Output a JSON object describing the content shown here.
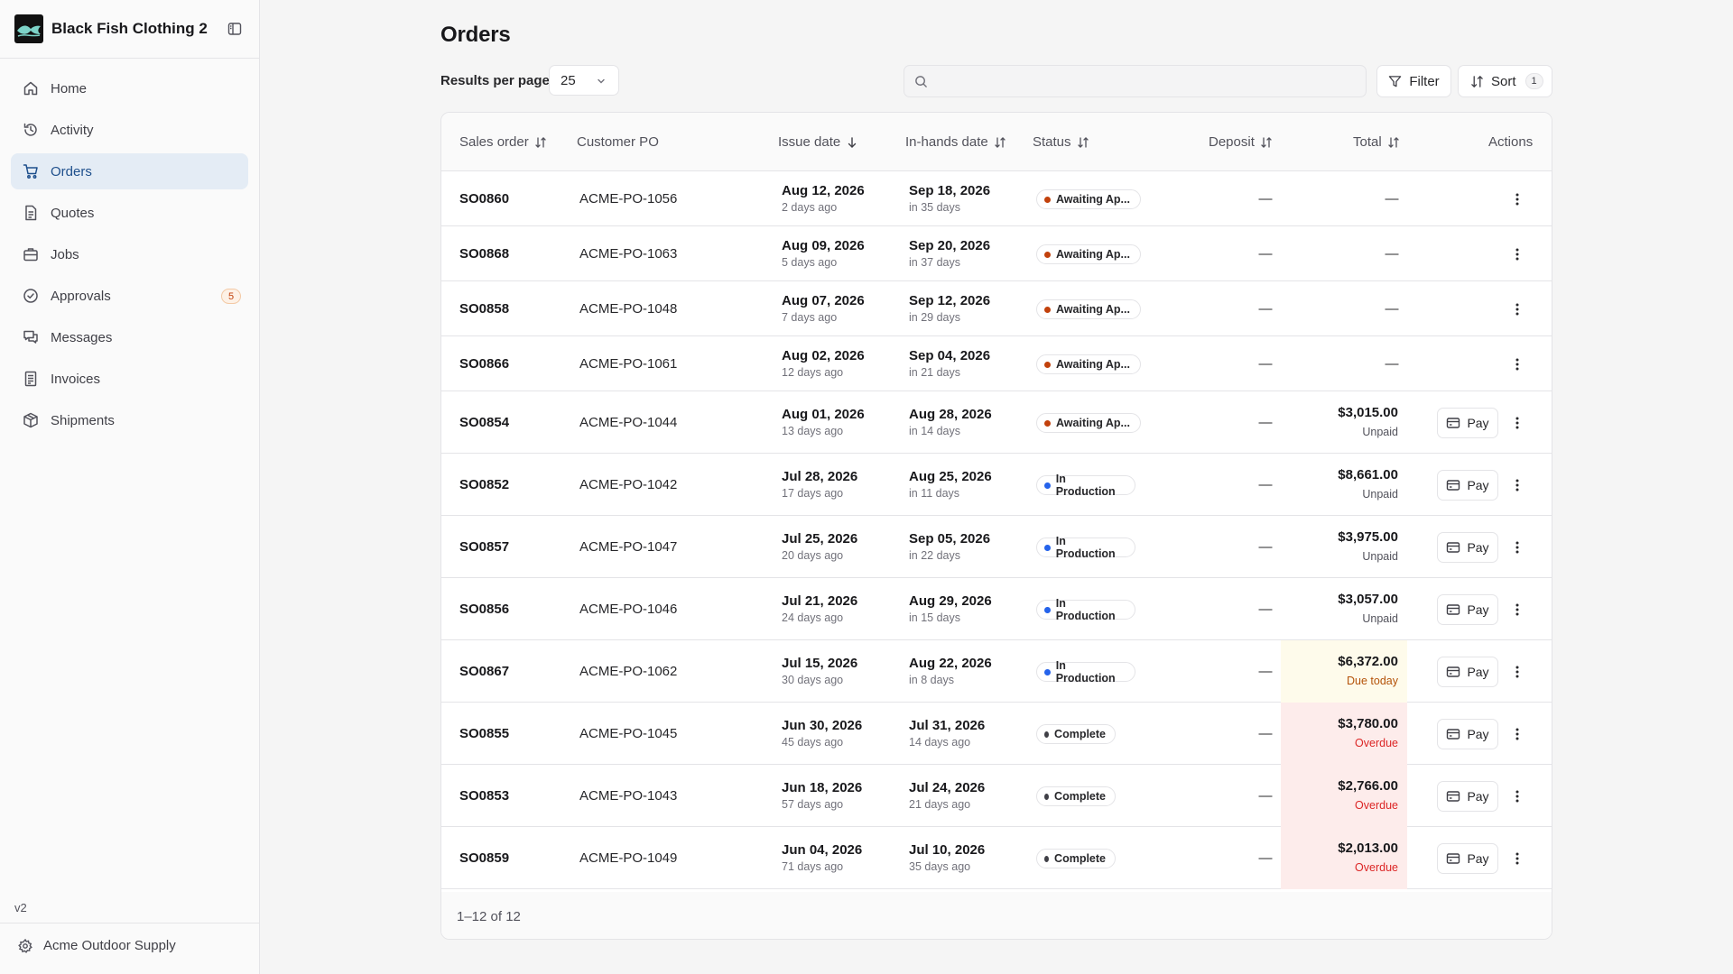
{
  "app": {
    "brand_name": "Black Fish Clothing 2",
    "version": "v2",
    "account_name": "Acme Outdoor Supply"
  },
  "sidebar": {
    "items": [
      {
        "label": "Home",
        "icon": "home-icon"
      },
      {
        "label": "Activity",
        "icon": "history-icon"
      },
      {
        "label": "Orders",
        "icon": "cart-icon",
        "active": true
      },
      {
        "label": "Quotes",
        "icon": "document-icon"
      },
      {
        "label": "Jobs",
        "icon": "briefcase-icon"
      },
      {
        "label": "Approvals",
        "icon": "check-circle-icon",
        "badge": "5"
      },
      {
        "label": "Messages",
        "icon": "messages-icon"
      },
      {
        "label": "Invoices",
        "icon": "receipt-icon"
      },
      {
        "label": "Shipments",
        "icon": "package-icon"
      }
    ]
  },
  "page": {
    "title": "Orders",
    "results_per_page_label": "Results per page",
    "results_per_page_value": "25",
    "search_placeholder": "",
    "filter_label": "Filter",
    "sort_label": "Sort",
    "sort_count": "1",
    "pagination": "1–12 of 12"
  },
  "table": {
    "columns": {
      "sales_order": "Sales order",
      "customer_po": "Customer PO",
      "issue_date": "Issue date",
      "in_hands_date": "In-hands date",
      "status": "Status",
      "deposit": "Deposit",
      "total": "Total",
      "actions": "Actions"
    },
    "pay_label": "Pay",
    "rows": [
      {
        "so": "SO0860",
        "po": "ACME-PO-1056",
        "issue": "Aug 12, 2026",
        "issue_rel": "2 days ago",
        "inhands": "Sep 18, 2026",
        "inhands_rel": "in 35 days",
        "status": "Awaiting Ap...",
        "status_kind": "awaiting",
        "deposit": "—",
        "total": "—",
        "total_sub": "",
        "total_state": "none",
        "pay": false
      },
      {
        "so": "SO0868",
        "po": "ACME-PO-1063",
        "issue": "Aug 09, 2026",
        "issue_rel": "5 days ago",
        "inhands": "Sep 20, 2026",
        "inhands_rel": "in 37 days",
        "status": "Awaiting Ap...",
        "status_kind": "awaiting",
        "deposit": "—",
        "total": "—",
        "total_sub": "",
        "total_state": "none",
        "pay": false
      },
      {
        "so": "SO0858",
        "po": "ACME-PO-1048",
        "issue": "Aug 07, 2026",
        "issue_rel": "7 days ago",
        "inhands": "Sep 12, 2026",
        "inhands_rel": "in 29 days",
        "status": "Awaiting Ap...",
        "status_kind": "awaiting",
        "deposit": "—",
        "total": "—",
        "total_sub": "",
        "total_state": "none",
        "pay": false
      },
      {
        "so": "SO0866",
        "po": "ACME-PO-1061",
        "issue": "Aug 02, 2026",
        "issue_rel": "12 days ago",
        "inhands": "Sep 04, 2026",
        "inhands_rel": "in 21 days",
        "status": "Awaiting Ap...",
        "status_kind": "awaiting",
        "deposit": "—",
        "total": "—",
        "total_sub": "",
        "total_state": "none",
        "pay": false
      },
      {
        "so": "SO0854",
        "po": "ACME-PO-1044",
        "issue": "Aug 01, 2026",
        "issue_rel": "13 days ago",
        "inhands": "Aug 28, 2026",
        "inhands_rel": "in 14 days",
        "status": "Awaiting Ap...",
        "status_kind": "awaiting",
        "deposit": "—",
        "total": "$3,015.00",
        "total_sub": "Unpaid",
        "total_state": "unpaid",
        "pay": true
      },
      {
        "so": "SO0852",
        "po": "ACME-PO-1042",
        "issue": "Jul 28, 2026",
        "issue_rel": "17 days ago",
        "inhands": "Aug 25, 2026",
        "inhands_rel": "in 11 days",
        "status": "In Production",
        "status_kind": "production",
        "deposit": "—",
        "total": "$8,661.00",
        "total_sub": "Unpaid",
        "total_state": "unpaid",
        "pay": true
      },
      {
        "so": "SO0857",
        "po": "ACME-PO-1047",
        "issue": "Jul 25, 2026",
        "issue_rel": "20 days ago",
        "inhands": "Sep 05, 2026",
        "inhands_rel": "in 22 days",
        "status": "In Production",
        "status_kind": "production",
        "deposit": "—",
        "total": "$3,975.00",
        "total_sub": "Unpaid",
        "total_state": "unpaid",
        "pay": true
      },
      {
        "so": "SO0856",
        "po": "ACME-PO-1046",
        "issue": "Jul 21, 2026",
        "issue_rel": "24 days ago",
        "inhands": "Aug 29, 2026",
        "inhands_rel": "in 15 days",
        "status": "In Production",
        "status_kind": "production",
        "deposit": "—",
        "total": "$3,057.00",
        "total_sub": "Unpaid",
        "total_state": "unpaid",
        "pay": true
      },
      {
        "so": "SO0867",
        "po": "ACME-PO-1062",
        "issue": "Jul 15, 2026",
        "issue_rel": "30 days ago",
        "inhands": "Aug 22, 2026",
        "inhands_rel": "in 8 days",
        "status": "In Production",
        "status_kind": "production",
        "deposit": "—",
        "total": "$6,372.00",
        "total_sub": "Due today",
        "total_state": "due",
        "pay": true
      },
      {
        "so": "SO0855",
        "po": "ACME-PO-1045",
        "issue": "Jun 30, 2026",
        "issue_rel": "45 days ago",
        "inhands": "Jul 31, 2026",
        "inhands_rel": "14 days ago",
        "status": "Complete",
        "status_kind": "complete",
        "deposit": "—",
        "total": "$3,780.00",
        "total_sub": "Overdue",
        "total_state": "overdue",
        "pay": true
      },
      {
        "so": "SO0853",
        "po": "ACME-PO-1043",
        "issue": "Jun 18, 2026",
        "issue_rel": "57 days ago",
        "inhands": "Jul 24, 2026",
        "inhands_rel": "21 days ago",
        "status": "Complete",
        "status_kind": "complete",
        "deposit": "—",
        "total": "$2,766.00",
        "total_sub": "Overdue",
        "total_state": "overdue",
        "pay": true
      },
      {
        "so": "SO0859",
        "po": "ACME-PO-1049",
        "issue": "Jun 04, 2026",
        "issue_rel": "71 days ago",
        "inhands": "Jul 10, 2026",
        "inhands_rel": "35 days ago",
        "status": "Complete",
        "status_kind": "complete",
        "deposit": "—",
        "total": "$2,013.00",
        "total_sub": "Overdue",
        "total_state": "overdue",
        "pay": true
      }
    ]
  },
  "colors": {
    "accent": "#1e4f8c",
    "active_nav_bg": "#e4ecf5",
    "status_awaiting": "#c2410c",
    "status_production": "#2563eb",
    "status_complete": "#3f3f46",
    "unpaid_text": "#52525b",
    "due_text": "#b45309",
    "due_bg": "#fefbeb",
    "overdue_text": "#dc2626",
    "overdue_bg": "#fdeceb"
  }
}
